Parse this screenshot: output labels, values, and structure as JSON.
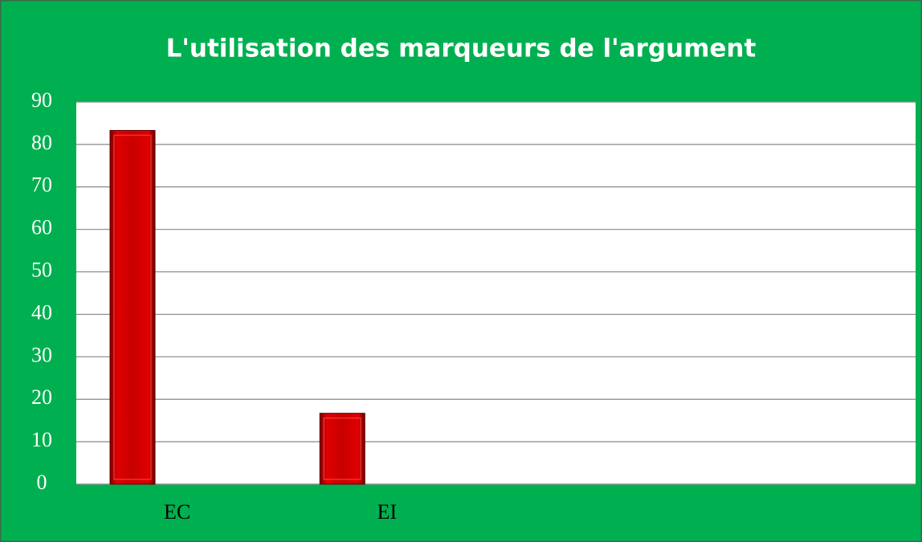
{
  "chart_data": {
    "type": "bar",
    "title": "L'utilisation des marqueurs de l'argument",
    "categories": [
      "EC",
      "EI",
      null,
      null
    ],
    "values": [
      83.3,
      16.7,
      null,
      null
    ],
    "color": "#c00000",
    "ylim": [
      0,
      90
    ],
    "yticks": [
      0,
      10,
      20,
      30,
      40,
      50,
      60,
      70,
      80,
      90
    ],
    "grid": true
  }
}
